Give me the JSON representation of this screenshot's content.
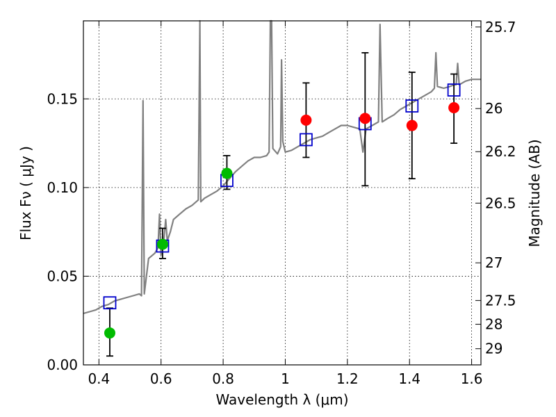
{
  "chart_data": {
    "type": "scatter",
    "title": "",
    "xlabel": "Wavelength  λ (μm)",
    "ylabel": "Flux  Fν  ( μJy )",
    "y2label": "Magnitude (AB)",
    "xlim": [
      0.35,
      1.63
    ],
    "ylim": [
      0.0,
      0.194
    ],
    "grid": true,
    "x_ticks": [
      {
        "value": 0.4,
        "label": "0.4"
      },
      {
        "value": 0.6,
        "label": "0.6"
      },
      {
        "value": 0.8,
        "label": "0.8"
      },
      {
        "value": 1.0,
        "label": "1"
      },
      {
        "value": 1.2,
        "label": "1.2"
      },
      {
        "value": 1.4,
        "label": "1.4"
      },
      {
        "value": 1.6,
        "label": "1.6"
      }
    ],
    "y_ticks": [
      {
        "value": 0.0,
        "label": "0.00"
      },
      {
        "value": 0.05,
        "label": "0.05"
      },
      {
        "value": 0.1,
        "label": "0.10"
      },
      {
        "value": 0.15,
        "label": "0.15"
      }
    ],
    "y2_ticks": [
      {
        "mag": 25.7,
        "label": "25.7"
      },
      {
        "mag": 26.0,
        "label": "26"
      },
      {
        "mag": 26.2,
        "label": "26.2"
      },
      {
        "mag": 26.5,
        "label": "26.5"
      },
      {
        "mag": 27.0,
        "label": "27"
      },
      {
        "mag": 27.5,
        "label": "27.5"
      },
      {
        "mag": 28.0,
        "label": "28"
      },
      {
        "mag": 29.0,
        "label": "29"
      }
    ],
    "colors": {
      "spectrum": "#808080",
      "optical_points": "#00bb00",
      "nir_points": "#ff0000",
      "model_points": "#0000cc",
      "errorbars": "#000000"
    },
    "spectrum": [
      [
        0.35,
        0.029
      ],
      [
        0.37,
        0.03
      ],
      [
        0.39,
        0.031
      ],
      [
        0.41,
        0.033
      ],
      [
        0.43,
        0.034
      ],
      [
        0.45,
        0.036
      ],
      [
        0.47,
        0.037
      ],
      [
        0.49,
        0.038
      ],
      [
        0.51,
        0.039
      ],
      [
        0.53,
        0.04
      ],
      [
        0.537,
        0.039
      ],
      [
        0.542,
        0.149
      ],
      [
        0.546,
        0.04
      ],
      [
        0.56,
        0.06
      ],
      [
        0.58,
        0.063
      ],
      [
        0.59,
        0.066
      ],
      [
        0.595,
        0.085
      ],
      [
        0.6,
        0.062
      ],
      [
        0.61,
        0.072
      ],
      [
        0.615,
        0.082
      ],
      [
        0.62,
        0.07
      ],
      [
        0.63,
        0.075
      ],
      [
        0.64,
        0.082
      ],
      [
        0.66,
        0.085
      ],
      [
        0.68,
        0.088
      ],
      [
        0.7,
        0.09
      ],
      [
        0.72,
        0.093
      ],
      [
        0.725,
        0.194
      ],
      [
        0.728,
        0.092
      ],
      [
        0.74,
        0.094
      ],
      [
        0.76,
        0.096
      ],
      [
        0.78,
        0.098
      ],
      [
        0.8,
        0.101
      ],
      [
        0.82,
        0.105
      ],
      [
        0.84,
        0.109
      ],
      [
        0.86,
        0.112
      ],
      [
        0.88,
        0.115
      ],
      [
        0.9,
        0.117
      ],
      [
        0.92,
        0.117
      ],
      [
        0.94,
        0.118
      ],
      [
        0.948,
        0.12
      ],
      [
        0.952,
        0.194
      ],
      [
        0.956,
        0.194
      ],
      [
        0.96,
        0.122
      ],
      [
        0.975,
        0.119
      ],
      [
        0.985,
        0.123
      ],
      [
        0.988,
        0.172
      ],
      [
        0.992,
        0.126
      ],
      [
        1.0,
        0.12
      ],
      [
        1.02,
        0.121
      ],
      [
        1.04,
        0.123
      ],
      [
        1.06,
        0.125
      ],
      [
        1.08,
        0.127
      ],
      [
        1.1,
        0.128
      ],
      [
        1.12,
        0.129
      ],
      [
        1.14,
        0.131
      ],
      [
        1.16,
        0.133
      ],
      [
        1.18,
        0.135
      ],
      [
        1.2,
        0.135
      ],
      [
        1.22,
        0.134
      ],
      [
        1.24,
        0.133
      ],
      [
        1.25,
        0.12
      ],
      [
        1.26,
        0.133
      ],
      [
        1.28,
        0.135
      ],
      [
        1.3,
        0.137
      ],
      [
        1.305,
        0.192
      ],
      [
        1.312,
        0.137
      ],
      [
        1.33,
        0.139
      ],
      [
        1.35,
        0.141
      ],
      [
        1.37,
        0.144
      ],
      [
        1.39,
        0.146
      ],
      [
        1.41,
        0.148
      ],
      [
        1.43,
        0.15
      ],
      [
        1.45,
        0.152
      ],
      [
        1.47,
        0.154
      ],
      [
        1.48,
        0.156
      ],
      [
        1.485,
        0.176
      ],
      [
        1.49,
        0.157
      ],
      [
        1.51,
        0.156
      ],
      [
        1.53,
        0.157
      ],
      [
        1.545,
        0.158
      ],
      [
        1.55,
        0.158
      ],
      [
        1.555,
        0.17
      ],
      [
        1.56,
        0.158
      ],
      [
        1.58,
        0.16
      ],
      [
        1.6,
        0.161
      ],
      [
        1.63,
        0.161
      ]
    ],
    "series": [
      {
        "role": "optical",
        "x": [
          0.435,
          0.605,
          0.812
        ],
        "y": [
          0.018,
          0.068,
          0.108
        ],
        "yerr_low": [
          0.005,
          0.06,
          0.099
        ],
        "yerr_high": [
          0.032,
          0.077,
          0.118
        ]
      },
      {
        "role": "near-infrared",
        "x": [
          1.067,
          1.257,
          1.408,
          1.543
        ],
        "y": [
          0.138,
          0.139,
          0.135,
          0.145
        ],
        "yerr_low": [
          0.117,
          0.101,
          0.105,
          0.125
        ],
        "yerr_high": [
          0.159,
          0.176,
          0.165,
          0.164
        ]
      },
      {
        "role": "model",
        "x": [
          0.435,
          0.605,
          0.812,
          1.067,
          1.257,
          1.408,
          1.543
        ],
        "y": [
          0.035,
          0.067,
          0.104,
          0.127,
          0.136,
          0.146,
          0.155
        ]
      }
    ]
  }
}
